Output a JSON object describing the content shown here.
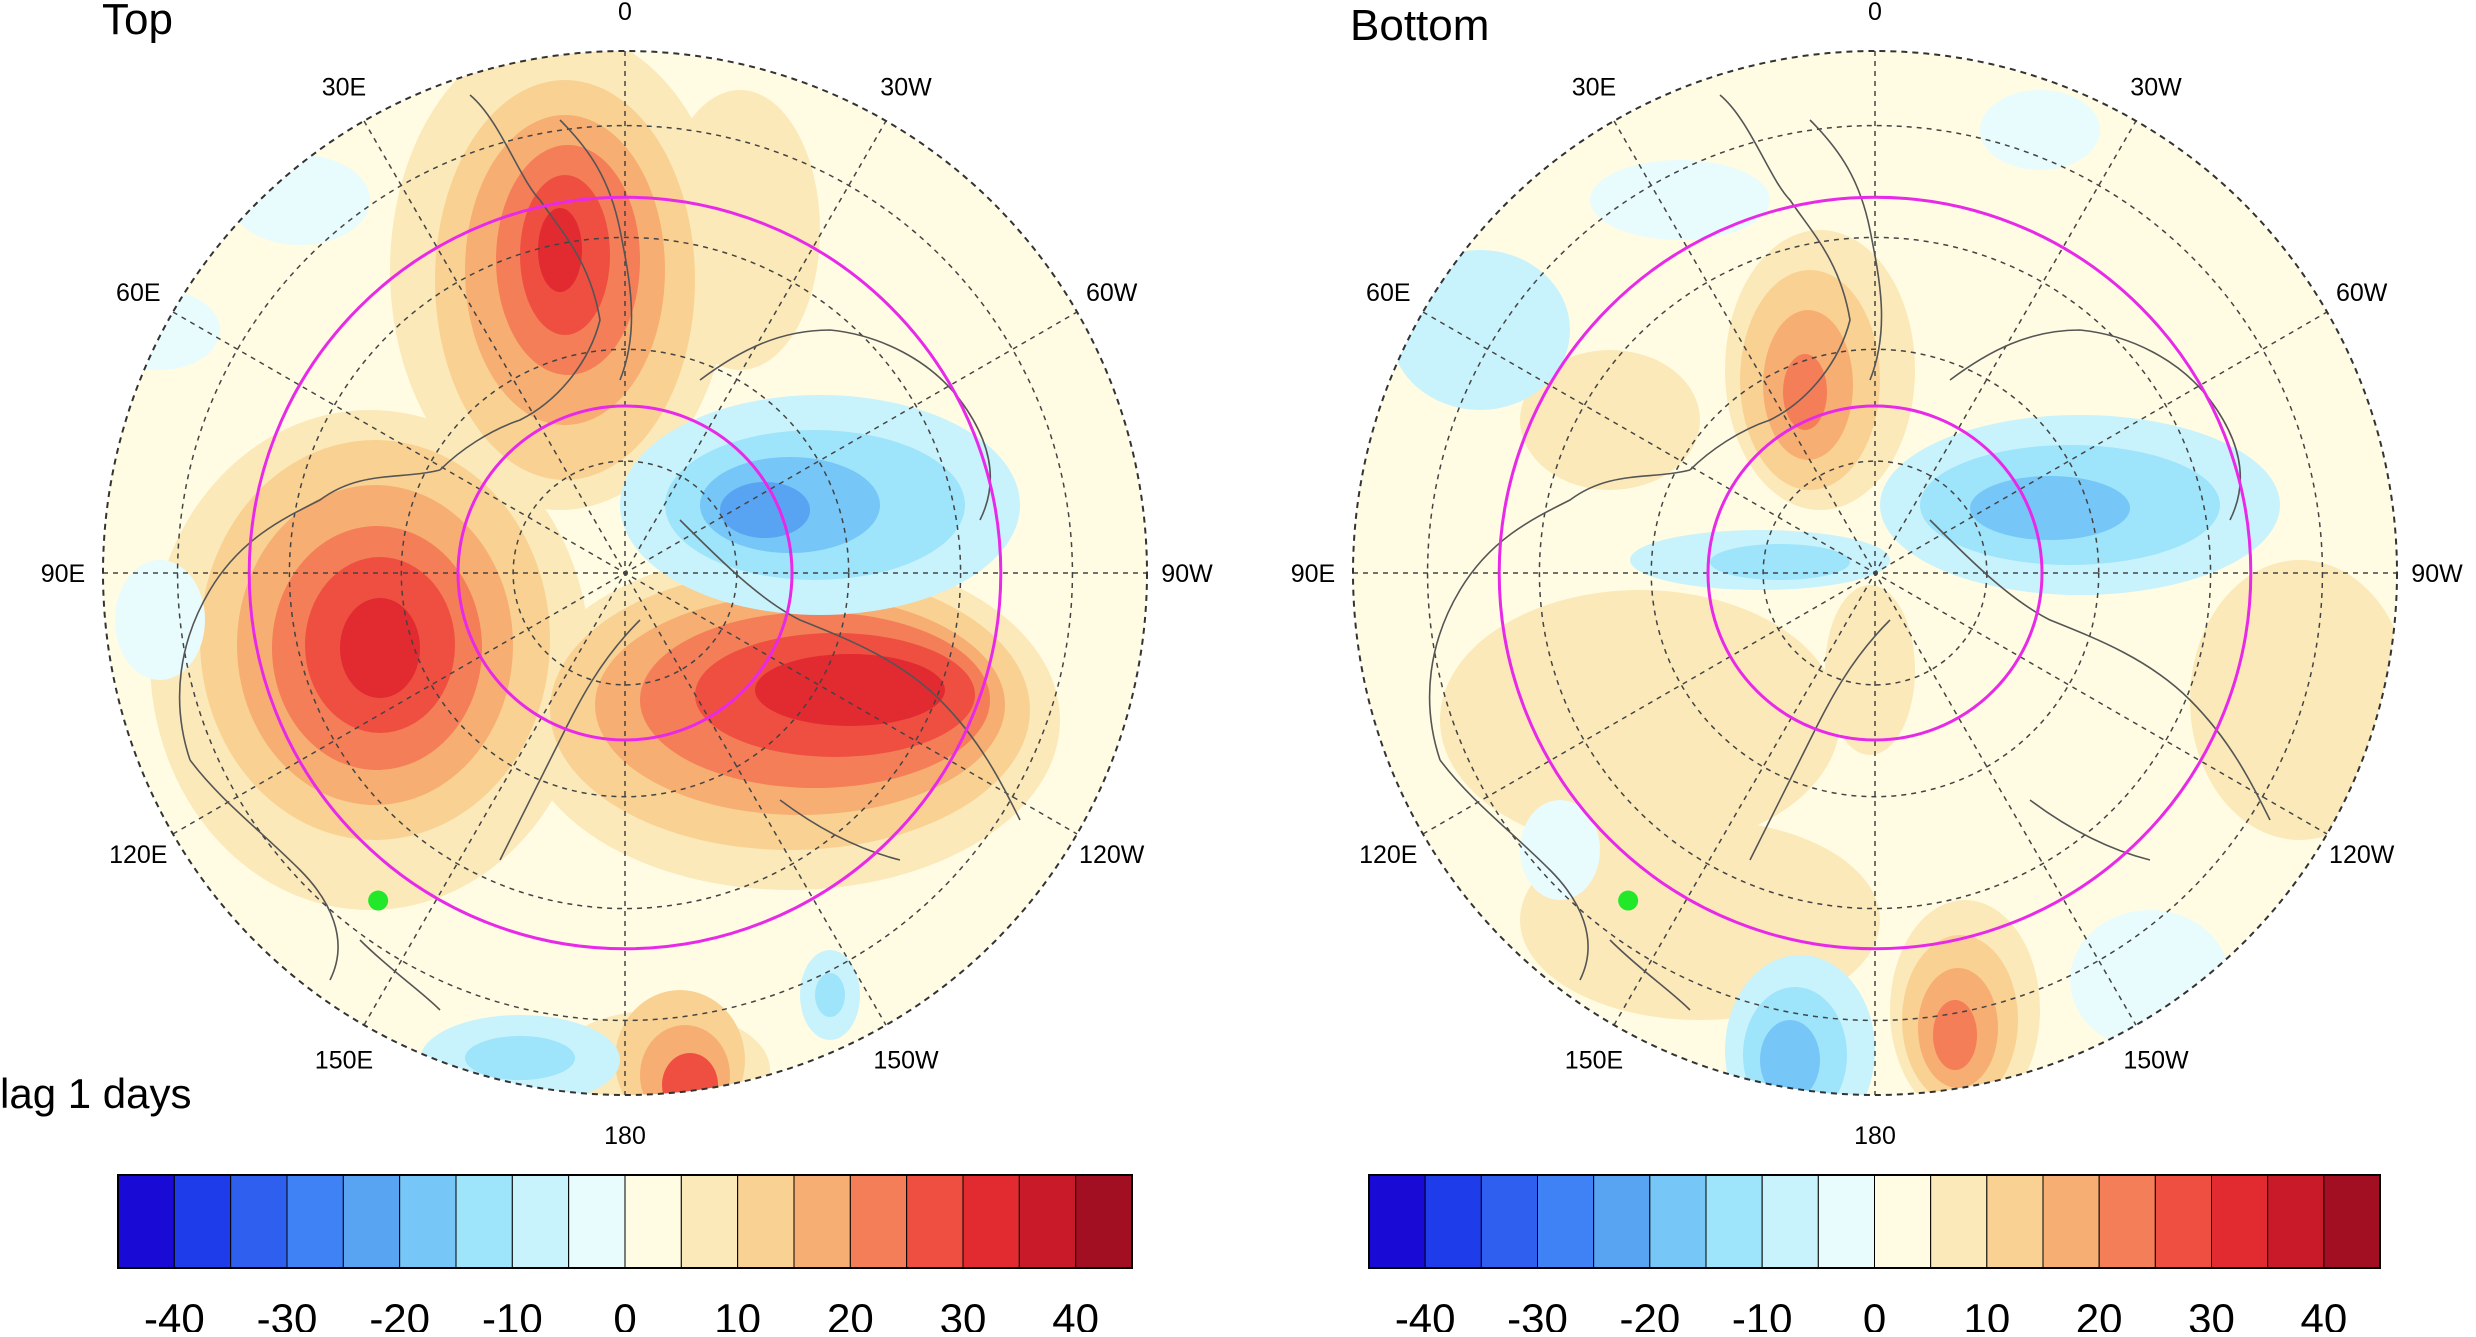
{
  "figure": {
    "annotation": "lag 1 days",
    "panels": [
      {
        "id": "top",
        "title": "Top"
      },
      {
        "id": "bottom",
        "title": "Bottom"
      }
    ],
    "longitude_labels": [
      {
        "lon": 0,
        "text": "0"
      },
      {
        "lon": 30,
        "text": "30E"
      },
      {
        "lon": -30,
        "text": "30W"
      },
      {
        "lon": 60,
        "text": "60E"
      },
      {
        "lon": -60,
        "text": "60W"
      },
      {
        "lon": 90,
        "text": "90E"
      },
      {
        "lon": -90,
        "text": "90W"
      },
      {
        "lon": 120,
        "text": "120E"
      },
      {
        "lon": -120,
        "text": "120W"
      },
      {
        "lon": 150,
        "text": "150E"
      },
      {
        "lon": -150,
        "text": "150W"
      },
      {
        "lon": 180,
        "text": "180"
      }
    ],
    "colorbar": {
      "levels": [
        -40,
        -35,
        -30,
        -25,
        -20,
        -15,
        -10,
        -5,
        0,
        5,
        10,
        15,
        20,
        25,
        30,
        35,
        40
      ],
      "tick_labels": [
        "-40",
        "-30",
        "-20",
        "-10",
        "0",
        "10",
        "20",
        "30",
        "40"
      ],
      "colors": [
        "#1a0ad6",
        "#1e3ce9",
        "#2e5fef",
        "#3f82f5",
        "#58a4f3",
        "#76c6f7",
        "#9ee4fb",
        "#c8f3fc",
        "#e8fbfd",
        "#fffce3",
        "#fbe9b9",
        "#f9d293",
        "#f7ae72",
        "#f47e57",
        "#ee4f41",
        "#e22a31",
        "#c91a2a",
        "#a20e22"
      ]
    },
    "marker": {
      "color": "#22e82a",
      "lat": 35,
      "lon": 143
    },
    "ring_color": "#e82ae8",
    "ring_latitudes": [
      75,
      45
    ]
  }
}
